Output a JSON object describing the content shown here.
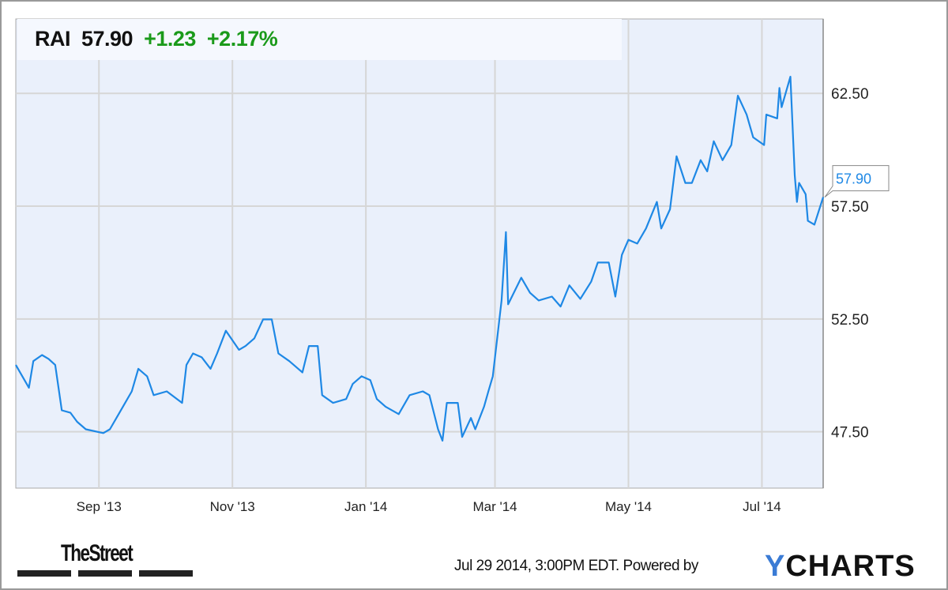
{
  "quote": {
    "symbol": "RAI",
    "price": "57.90",
    "change": "+1.23",
    "change_pct": "+2.17%"
  },
  "colors": {
    "line": "#1e88e5",
    "plot_bg": "#eaf0fb",
    "grid": "#d6d6d6",
    "up": "#1a9a1a"
  },
  "footer": {
    "timestamp": "Jul 29 2014, 3:00PM EDT.",
    "powered_by": "Powered by",
    "ycharts_logo": "YCHARTS",
    "thestreet_logo": "TheStreet"
  },
  "chart_data": {
    "type": "line",
    "title": "",
    "xlabel": "",
    "ylabel": "",
    "ylim": [
      45.0,
      65.8
    ],
    "xlim": [
      "2013-07-25",
      "2014-07-29"
    ],
    "grid": true,
    "y_axis_side": "right",
    "x_ticks": [
      {
        "date": "2013-09-01",
        "label": "Sep '13"
      },
      {
        "date": "2013-11-01",
        "label": "Nov '13"
      },
      {
        "date": "2014-01-01",
        "label": "Jan '14"
      },
      {
        "date": "2014-03-01",
        "label": "Mar '14"
      },
      {
        "date": "2014-05-01",
        "label": "May '14"
      },
      {
        "date": "2014-07-01",
        "label": "Jul '14"
      }
    ],
    "y_ticks": [
      {
        "value": 47.5,
        "label": "47.50"
      },
      {
        "value": 52.5,
        "label": "52.50"
      },
      {
        "value": 57.5,
        "label": "57.50"
      },
      {
        "value": 62.5,
        "label": "62.50"
      }
    ],
    "last_value_label": "57.90",
    "series": [
      {
        "values": [
          [
            "2013-07-25",
            50.46
          ],
          [
            "2013-07-31",
            49.45
          ],
          [
            "2013-08-02",
            50.63
          ],
          [
            "2013-08-06",
            50.9
          ],
          [
            "2013-08-09",
            50.73
          ],
          [
            "2013-08-12",
            50.46
          ],
          [
            "2013-08-15",
            48.45
          ],
          [
            "2013-08-19",
            48.34
          ],
          [
            "2013-08-22",
            47.94
          ],
          [
            "2013-08-26",
            47.61
          ],
          [
            "2013-09-03",
            47.44
          ],
          [
            "2013-09-06",
            47.61
          ],
          [
            "2013-09-10",
            48.28
          ],
          [
            "2013-09-16",
            49.29
          ],
          [
            "2013-09-19",
            50.29
          ],
          [
            "2013-09-23",
            49.96
          ],
          [
            "2013-09-26",
            49.12
          ],
          [
            "2013-10-02",
            49.29
          ],
          [
            "2013-10-09",
            48.78
          ],
          [
            "2013-10-11",
            50.46
          ],
          [
            "2013-10-14",
            50.97
          ],
          [
            "2013-10-18",
            50.8
          ],
          [
            "2013-10-22",
            50.29
          ],
          [
            "2013-10-25",
            50.97
          ],
          [
            "2013-10-29",
            51.98
          ],
          [
            "2013-11-04",
            51.13
          ],
          [
            "2013-11-07",
            51.3
          ],
          [
            "2013-11-11",
            51.64
          ],
          [
            "2013-11-15",
            52.48
          ],
          [
            "2013-11-19",
            52.48
          ],
          [
            "2013-11-22",
            50.97
          ],
          [
            "2013-11-27",
            50.63
          ],
          [
            "2013-12-03",
            50.13
          ],
          [
            "2013-12-06",
            51.3
          ],
          [
            "2013-12-10",
            51.3
          ],
          [
            "2013-12-12",
            49.12
          ],
          [
            "2013-12-17",
            48.78
          ],
          [
            "2013-12-23",
            48.95
          ],
          [
            "2013-12-26",
            49.62
          ],
          [
            "2013-12-30",
            49.96
          ],
          [
            "2014-01-03",
            49.79
          ],
          [
            "2014-01-06",
            48.95
          ],
          [
            "2014-01-10",
            48.61
          ],
          [
            "2014-01-16",
            48.28
          ],
          [
            "2014-01-21",
            49.12
          ],
          [
            "2014-01-27",
            49.29
          ],
          [
            "2014-01-30",
            49.12
          ],
          [
            "2014-02-03",
            47.61
          ],
          [
            "2014-02-05",
            47.1
          ],
          [
            "2014-02-07",
            48.78
          ],
          [
            "2014-02-12",
            48.78
          ],
          [
            "2014-02-14",
            47.27
          ],
          [
            "2014-02-18",
            48.11
          ],
          [
            "2014-02-20",
            47.61
          ],
          [
            "2014-02-24",
            48.61
          ],
          [
            "2014-02-26",
            49.29
          ],
          [
            "2014-02-28",
            49.96
          ],
          [
            "2014-03-04",
            53.32
          ],
          [
            "2014-03-06",
            56.35
          ],
          [
            "2014-03-07",
            53.15
          ],
          [
            "2014-03-13",
            54.33
          ],
          [
            "2014-03-17",
            53.66
          ],
          [
            "2014-03-21",
            53.32
          ],
          [
            "2014-03-27",
            53.49
          ],
          [
            "2014-03-31",
            53.05
          ],
          [
            "2014-04-04",
            53.99
          ],
          [
            "2014-04-09",
            53.39
          ],
          [
            "2014-04-14",
            54.16
          ],
          [
            "2014-04-17",
            55.0
          ],
          [
            "2014-04-22",
            55.0
          ],
          [
            "2014-04-25",
            53.49
          ],
          [
            "2014-04-28",
            55.34
          ],
          [
            "2014-05-01",
            56.01
          ],
          [
            "2014-05-05",
            55.84
          ],
          [
            "2014-05-09",
            56.51
          ],
          [
            "2014-05-14",
            57.69
          ],
          [
            "2014-05-16",
            56.51
          ],
          [
            "2014-05-20",
            57.36
          ],
          [
            "2014-05-23",
            59.71
          ],
          [
            "2014-05-27",
            58.53
          ],
          [
            "2014-05-30",
            58.53
          ],
          [
            "2014-06-03",
            59.54
          ],
          [
            "2014-06-06",
            59.04
          ],
          [
            "2014-06-09",
            60.38
          ],
          [
            "2014-06-13",
            59.54
          ],
          [
            "2014-06-17",
            60.21
          ],
          [
            "2014-06-20",
            62.4
          ],
          [
            "2014-06-24",
            61.56
          ],
          [
            "2014-06-27",
            60.55
          ],
          [
            "2014-07-02",
            60.21
          ],
          [
            "2014-07-03",
            61.56
          ],
          [
            "2014-07-08",
            61.39
          ],
          [
            "2014-07-09",
            62.74
          ],
          [
            "2014-07-10",
            61.89
          ],
          [
            "2014-07-14",
            63.24
          ],
          [
            "2014-07-16",
            58.87
          ],
          [
            "2014-07-17",
            57.69
          ],
          [
            "2014-07-18",
            58.53
          ],
          [
            "2014-07-21",
            58.03
          ],
          [
            "2014-07-22",
            56.85
          ],
          [
            "2014-07-25",
            56.68
          ],
          [
            "2014-07-29",
            57.9
          ]
        ]
      }
    ]
  }
}
